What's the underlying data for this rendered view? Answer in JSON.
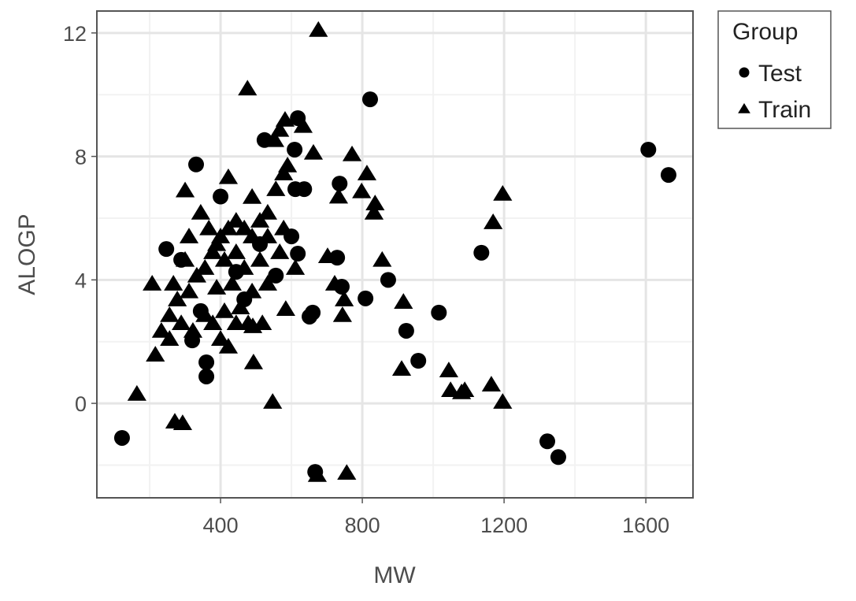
{
  "chart_data": {
    "type": "scatter",
    "xlabel": "MW",
    "ylabel": "ALOGP",
    "xlim": [
      51,
      1733
    ],
    "ylim": [
      -3.06,
      12.71
    ],
    "xticks": [
      400,
      800,
      1200,
      1600
    ],
    "yticks": [
      0,
      4,
      8,
      12
    ],
    "x_minor_ticks": [
      200,
      600,
      1000,
      1400
    ],
    "y_minor_ticks": [
      -2,
      2,
      6,
      10
    ],
    "grid": true,
    "legend_title": "Group",
    "legend_position": "right",
    "series": [
      {
        "name": "Test",
        "color": "#000000",
        "shape": "circle",
        "x": [
          122,
          1607,
          1664,
          822,
          636,
          618,
          331,
          247,
          736,
          729,
          873,
          809,
          742,
          660,
          651,
          924,
          958,
          1016,
          1136,
          1322,
          1353,
          667,
          611,
          320,
          618,
          524,
          609,
          360,
          360,
          400,
          289,
          467,
          511,
          444,
          556,
          344,
          600
        ],
        "y": [
          -1.12,
          8.22,
          7.4,
          9.85,
          6.94,
          4.85,
          7.74,
          5.0,
          7.12,
          4.72,
          4.0,
          3.4,
          3.78,
          2.94,
          2.81,
          2.35,
          1.38,
          2.94,
          4.88,
          -1.23,
          -1.74,
          -2.22,
          6.94,
          2.04,
          9.24,
          8.53,
          8.22,
          0.87,
          1.33,
          6.7,
          4.65,
          3.37,
          5.16,
          4.26,
          4.14,
          2.99,
          5.41
        ]
      },
      {
        "name": "Train",
        "color": "#000000",
        "shape": "triangle",
        "x": [
          676,
          476,
          164,
          271,
          293,
          216,
          207,
          300,
          422,
          547,
          493,
          673,
          756,
          662,
          771,
          813,
          798,
          836,
          833,
          733,
          856,
          702,
          722,
          749,
          744,
          916,
          911,
          1044,
          1049,
          1089,
          1080,
          1164,
          1196,
          1169,
          1196,
          584,
          518,
          491,
          567,
          582,
          633,
          553,
          611,
          233,
          256,
          278,
          311,
          333,
          356,
          378,
          400,
          422,
          444,
          467,
          489,
          511,
          533,
          556,
          578,
          589,
          344,
          367,
          389,
          411,
          433,
          456,
          478,
          378,
          322,
          289,
          256,
          444,
          422,
          400,
          356,
          533,
          567,
          578,
          511,
          467,
          311,
          300,
          267,
          489,
          389,
          411,
          444,
          489,
          533
        ],
        "y": [
          12.1,
          10.2,
          0.31,
          -0.59,
          -0.64,
          1.58,
          3.88,
          6.9,
          7.33,
          0.05,
          1.33,
          -2.32,
          -2.25,
          8.12,
          8.07,
          7.45,
          6.87,
          6.48,
          6.18,
          6.7,
          4.65,
          4.77,
          3.88,
          3.37,
          2.86,
          3.29,
          1.12,
          1.07,
          0.43,
          0.43,
          0.36,
          0.61,
          0.05,
          5.87,
          6.79,
          3.06,
          2.6,
          2.5,
          8.86,
          9.19,
          8.99,
          8.53,
          4.39,
          2.35,
          2.86,
          3.37,
          3.63,
          4.14,
          4.39,
          4.9,
          5.41,
          5.67,
          5.92,
          5.67,
          5.41,
          5.92,
          6.18,
          6.94,
          7.45,
          7.71,
          6.18,
          5.67,
          5.16,
          4.65,
          3.88,
          3.11,
          2.6,
          2.6,
          2.35,
          2.6,
          2.09,
          2.6,
          1.84,
          2.09,
          2.86,
          3.88,
          4.9,
          5.67,
          4.65,
          4.39,
          5.41,
          4.65,
          3.88,
          3.63,
          3.75,
          2.99,
          4.9,
          6.69,
          5.41
        ]
      }
    ]
  }
}
